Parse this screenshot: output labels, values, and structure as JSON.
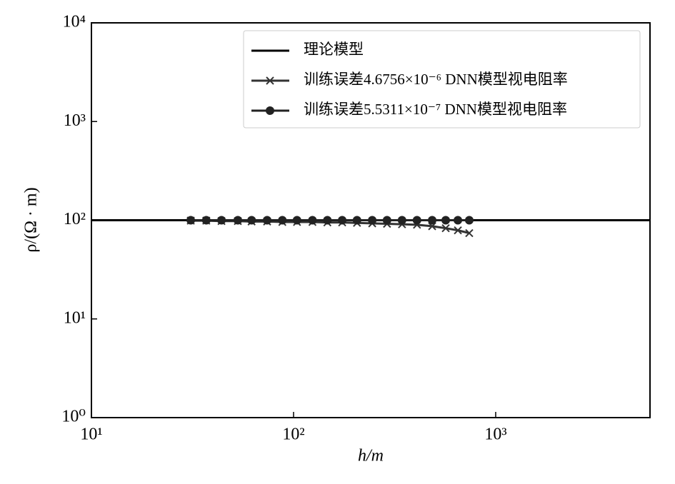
{
  "chart_data": {
    "type": "line",
    "xlabel": "h/m",
    "ylabel": "ρ/(Ω · m)",
    "log_x": true,
    "log_y": true,
    "xlim": [
      10,
      5800
    ],
    "ylim": [
      1,
      10000
    ],
    "xticks": [
      {
        "value": 10,
        "label": "10¹"
      },
      {
        "value": 100,
        "label": "10²"
      },
      {
        "value": 1000,
        "label": "10³"
      }
    ],
    "yticks": [
      {
        "value": 1,
        "label": "10⁰"
      },
      {
        "value": 10,
        "label": "10¹"
      },
      {
        "value": 100,
        "label": "10²"
      },
      {
        "value": 1000,
        "label": "10³"
      },
      {
        "value": 10000,
        "label": "10⁴"
      }
    ],
    "legend": "upper right",
    "series": [
      {
        "name": "理论模型",
        "color": "#000000",
        "marker": "none",
        "x": [
          10,
          5800
        ],
        "values": [
          100,
          100
        ]
      },
      {
        "name": "训练误差4.6756×10⁻⁶ DNN模型视电阻率",
        "color": "#333333",
        "marker": "x",
        "x": [
          31,
          37,
          44,
          53,
          62,
          74,
          88,
          104,
          124,
          147,
          174,
          206,
          245,
          290,
          344,
          408,
          485,
          566,
          650,
          740
        ],
        "values": [
          99,
          99,
          98,
          98,
          97,
          97,
          96,
          96,
          96,
          95,
          95,
          94,
          93,
          92,
          91,
          90,
          87,
          83,
          79,
          74
        ]
      },
      {
        "name": "训练误差5.5311×10⁻⁷ DNN模型视电阻率",
        "color": "#222222",
        "marker": "o",
        "x": [
          31,
          37,
          44,
          53,
          62,
          74,
          88,
          104,
          124,
          147,
          174,
          206,
          245,
          290,
          344,
          408,
          485,
          566,
          650,
          740
        ],
        "values": [
          100,
          100,
          100,
          100,
          100,
          100,
          100,
          100,
          100,
          100,
          100,
          100,
          100,
          100,
          100,
          100,
          100,
          100,
          100,
          100
        ]
      }
    ]
  }
}
